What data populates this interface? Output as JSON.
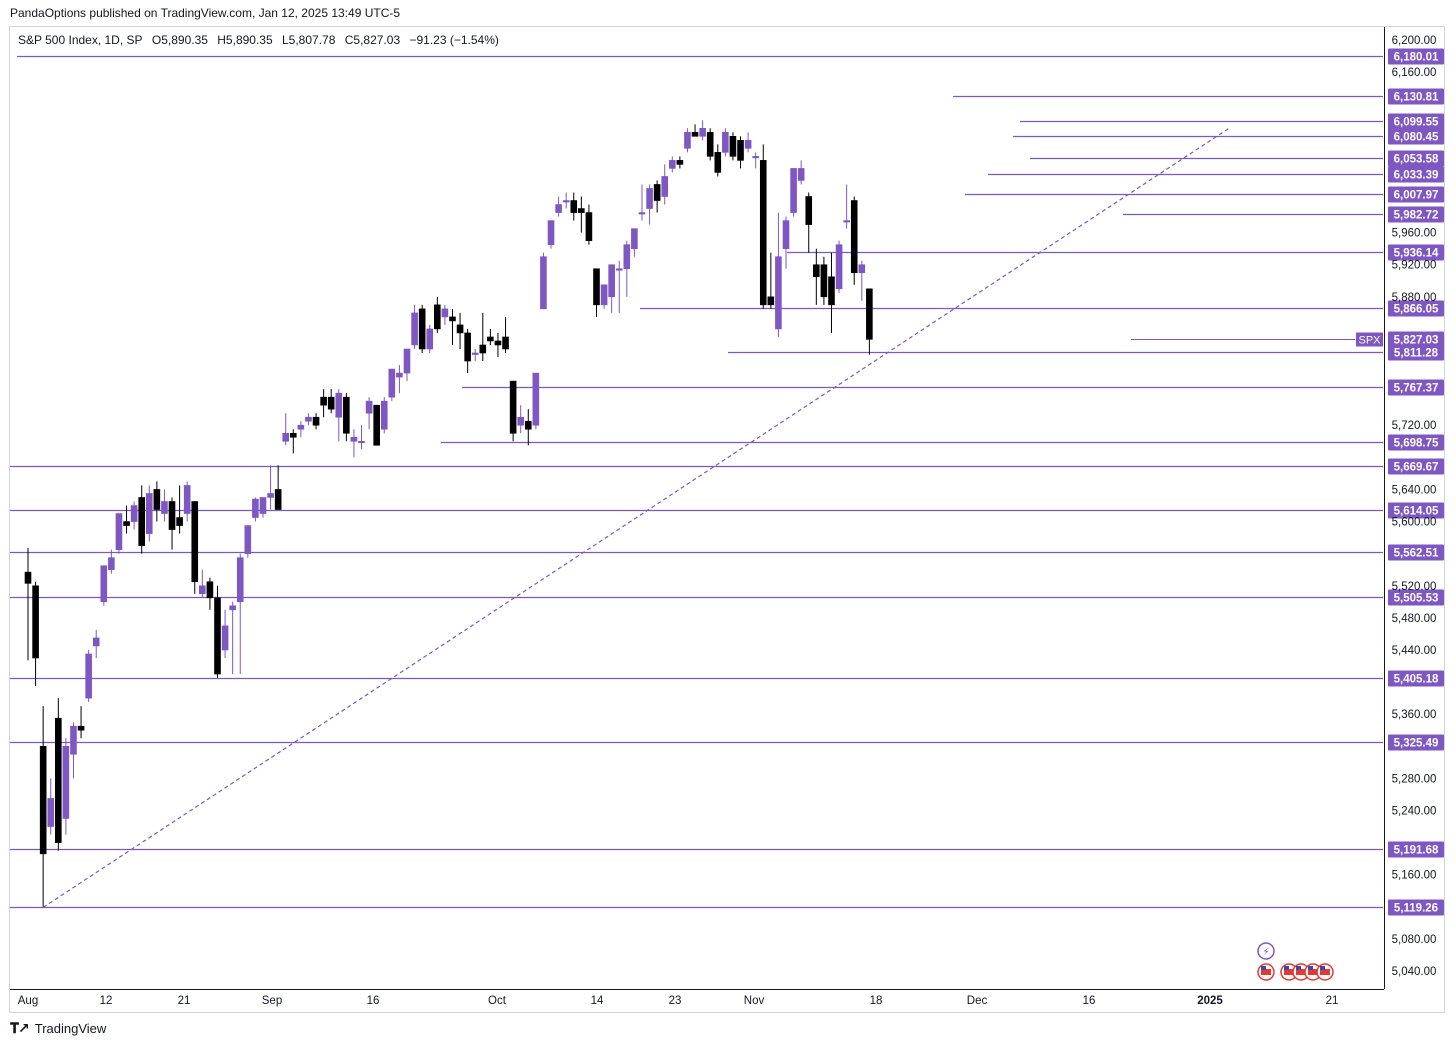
{
  "header": {
    "published": "PandaOptions published on TradingView.com, Jan 12, 2025 13:49 UTC-5"
  },
  "legend": {
    "symbol": "S&P 500 Index, 1D, SP",
    "open": "O5,890.35",
    "high": "H5,890.35",
    "low": "L5,807.78",
    "close": "C5,827.03",
    "change": "−91.23 (−1.54%)"
  },
  "footer": {
    "brand": "TradingView"
  },
  "colors": {
    "bull": "#7e57c2",
    "bear": "#000000",
    "level": "#7e57c2",
    "label_bg": "#7e57c2",
    "axis_text": "#131722"
  },
  "chart_data": {
    "type": "candlestick",
    "symbol": "SPX",
    "ylim": [
      5010,
      6215
    ],
    "y_ticks": [
      6200,
      6160,
      5960,
      5920,
      5880,
      5720,
      5640,
      5600,
      5520,
      5480,
      5440,
      5360,
      5280,
      5240,
      5160,
      5080,
      5040
    ],
    "x_ticks": [
      "Aug",
      "12",
      "21",
      "Sep",
      "16",
      "Oct",
      "14",
      "23",
      "Nov",
      "18",
      "Dec",
      "16",
      "2025",
      "21"
    ],
    "last_price": 5827.03,
    "last_label": "SPX",
    "levels": [
      6180.01,
      6130.81,
      6099.55,
      6080.45,
      6053.58,
      6033.39,
      6007.97,
      5982.72,
      5936.14,
      5866.05,
      5827.03,
      5811.28,
      5767.37,
      5698.75,
      5669.67,
      5614.05,
      5562.51,
      5505.53,
      5405.18,
      5325.49,
      5191.68,
      5119.26
    ],
    "level_labels": [
      "6,180.01",
      "6,130.81",
      "6,099.55",
      "6,080.45",
      "6,053.58",
      "6,033.39",
      "6,007.97",
      "5,982.72",
      "5,936.14",
      "5,866.05",
      "5,827.03",
      "5,811.28",
      "5,767.37",
      "5,698.75",
      "5,669.67",
      "5,614.05",
      "5,562.51",
      "5,505.53",
      "5,405.18",
      "5,325.49",
      "5,191.68",
      "5,119.26"
    ],
    "trendline": {
      "from": [
        "2024-08-05",
        5119.26
      ],
      "to": [
        "2025-01-02",
        6090
      ]
    },
    "candles": [
      [
        "2024-08-01",
        5537,
        5567,
        5427,
        5523
      ],
      [
        "2024-08-02",
        5520,
        5525,
        5395,
        5430
      ],
      [
        "2024-08-05",
        5320,
        5370,
        5120,
        5186
      ],
      [
        "2024-08-06",
        5220,
        5280,
        5210,
        5255
      ],
      [
        "2024-08-07",
        5355,
        5380,
        5190,
        5200
      ],
      [
        "2024-08-08",
        5230,
        5330,
        5210,
        5320
      ],
      [
        "2024-08-09",
        5310,
        5350,
        5280,
        5345
      ],
      [
        "2024-08-12",
        5345,
        5370,
        5330,
        5340
      ],
      [
        "2024-08-13",
        5380,
        5440,
        5375,
        5435
      ],
      [
        "2024-08-14",
        5445,
        5465,
        5430,
        5455
      ],
      [
        "2024-08-15",
        5500,
        5545,
        5495,
        5545
      ],
      [
        "2024-08-16",
        5540,
        5565,
        5535,
        5555
      ],
      [
        "2024-08-19",
        5565,
        5610,
        5560,
        5610
      ],
      [
        "2024-08-20",
        5600,
        5620,
        5585,
        5595
      ],
      [
        "2024-08-21",
        5600,
        5625,
        5590,
        5620
      ],
      [
        "2024-08-22",
        5630,
        5645,
        5560,
        5570
      ],
      [
        "2024-08-23",
        5585,
        5645,
        5575,
        5635
      ],
      [
        "2024-08-26",
        5640,
        5650,
        5600,
        5615
      ],
      [
        "2024-08-27",
        5610,
        5640,
        5600,
        5625
      ],
      [
        "2024-08-28",
        5625,
        5630,
        5565,
        5590
      ],
      [
        "2024-08-29",
        5605,
        5645,
        5585,
        5595
      ],
      [
        "2024-08-30",
        5610,
        5650,
        5600,
        5645
      ],
      [
        "2024-09-03",
        5625,
        5625,
        5510,
        5525
      ],
      [
        "2024-09-04",
        5510,
        5540,
        5505,
        5520
      ],
      [
        "2024-09-05",
        5525,
        5530,
        5490,
        5505
      ],
      [
        "2024-09-06",
        5505,
        5520,
        5405,
        5410
      ],
      [
        "2024-09-09",
        5440,
        5490,
        5430,
        5470
      ],
      [
        "2024-09-10",
        5490,
        5500,
        5410,
        5495
      ],
      [
        "2024-09-11",
        5500,
        5560,
        5410,
        5555
      ],
      [
        "2024-09-12",
        5560,
        5595,
        5555,
        5595
      ],
      [
        "2024-09-13",
        5605,
        5630,
        5600,
        5628
      ],
      [
        "2024-09-16",
        5610,
        5630,
        5605,
        5630
      ],
      [
        "2024-09-17",
        5630,
        5670,
        5615,
        5635
      ],
      [
        "2024-09-18",
        5640,
        5670,
        5615,
        5615
      ],
      [
        "2024-09-19",
        5700,
        5735,
        5695,
        5710
      ],
      [
        "2024-09-20",
        5710,
        5715,
        5685,
        5705
      ],
      [
        "2024-09-23",
        5715,
        5725,
        5705,
        5720
      ],
      [
        "2024-09-24",
        5725,
        5735,
        5720,
        5730
      ],
      [
        "2024-09-25",
        5730,
        5735,
        5715,
        5720
      ],
      [
        "2024-09-26",
        5755,
        5765,
        5730,
        5745
      ],
      [
        "2024-09-27",
        5755,
        5765,
        5735,
        5740
      ],
      [
        "2024-09-30",
        5730,
        5765,
        5700,
        5760
      ],
      [
        "2024-10-01",
        5755,
        5760,
        5700,
        5710
      ],
      [
        "2024-10-02",
        5700,
        5715,
        5680,
        5705
      ],
      [
        "2024-10-03",
        5700,
        5720,
        5690,
        5700
      ],
      [
        "2024-10-04",
        5735,
        5755,
        5715,
        5750
      ],
      [
        "2024-10-07",
        5745,
        5745,
        5695,
        5695
      ],
      [
        "2024-10-08",
        5715,
        5755,
        5710,
        5750
      ],
      [
        "2024-10-09",
        5755,
        5790,
        5750,
        5790
      ],
      [
        "2024-10-10",
        5780,
        5795,
        5760,
        5785
      ],
      [
        "2024-10-11",
        5785,
        5815,
        5775,
        5815
      ],
      [
        "2024-10-14",
        5820,
        5870,
        5815,
        5860
      ],
      [
        "2024-10-15",
        5865,
        5870,
        5810,
        5815
      ],
      [
        "2024-10-16",
        5815,
        5845,
        5810,
        5840
      ],
      [
        "2024-10-17",
        5870,
        5880,
        5835,
        5840
      ],
      [
        "2024-10-18",
        5855,
        5870,
        5845,
        5865
      ],
      [
        "2024-10-21",
        5855,
        5865,
        5820,
        5850
      ],
      [
        "2024-10-22",
        5845,
        5860,
        5815,
        5835
      ],
      [
        "2024-10-23",
        5835,
        5840,
        5785,
        5800
      ],
      [
        "2024-10-24",
        5810,
        5815,
        5800,
        5810
      ],
      [
        "2024-10-25",
        5820,
        5860,
        5800,
        5810
      ],
      [
        "2024-10-28",
        5830,
        5840,
        5820,
        5825
      ],
      [
        "2024-10-29",
        5825,
        5835,
        5805,
        5820
      ],
      [
        "2024-10-30",
        5830,
        5855,
        5810,
        5815
      ],
      [
        "2024-10-31",
        5775,
        5775,
        5700,
        5710
      ],
      [
        "2024-11-01",
        5720,
        5745,
        5710,
        5730
      ],
      [
        "2024-11-04",
        5725,
        5740,
        5695,
        5715
      ],
      [
        "2024-11-05",
        5720,
        5785,
        5715,
        5785
      ],
      [
        "2024-11-06",
        5865,
        5935,
        5865,
        5930
      ],
      [
        "2024-11-07",
        5945,
        5975,
        5940,
        5975
      ],
      [
        "2024-11-08",
        5985,
        6005,
        5980,
        5995
      ],
      [
        "2024-11-11",
        6000,
        6010,
        5990,
        6000
      ],
      [
        "2024-11-12",
        6000,
        6010,
        5975,
        5985
      ],
      [
        "2024-11-13",
        5990,
        6005,
        5960,
        5985
      ],
      [
        "2024-11-14",
        5985,
        5995,
        5945,
        5950
      ],
      [
        "2024-11-15",
        5915,
        5915,
        5855,
        5870
      ],
      [
        "2024-11-18",
        5870,
        5895,
        5865,
        5895
      ],
      [
        "2024-11-19",
        5880,
        5920,
        5860,
        5920
      ],
      [
        "2024-11-20",
        5915,
        5925,
        5860,
        5915
      ],
      [
        "2024-11-21",
        5915,
        5950,
        5880,
        5945
      ],
      [
        "2024-11-22",
        5940,
        5965,
        5930,
        5965
      ],
      [
        "2024-11-25",
        5985,
        6020,
        5975,
        5985
      ],
      [
        "2024-11-26",
        5990,
        6020,
        5970,
        6015
      ],
      [
        "2024-11-27",
        6020,
        6025,
        5985,
        6000
      ],
      [
        "2024-11-29",
        6005,
        6045,
        5995,
        6030
      ],
      [
        "2024-12-02",
        6040,
        6055,
        6035,
        6050
      ],
      [
        "2024-12-03",
        6050,
        6055,
        6040,
        6045
      ],
      [
        "2024-12-04",
        6065,
        6090,
        6060,
        6085
      ],
      [
        "2024-12-05",
        6085,
        6095,
        6080,
        6080
      ],
      [
        "2024-12-06",
        6080,
        6100,
        6075,
        6090
      ],
      [
        "2024-12-09",
        6085,
        6090,
        6050,
        6055
      ],
      [
        "2024-12-10",
        6060,
        6070,
        6030,
        6035
      ],
      [
        "2024-12-11",
        6060,
        6090,
        6055,
        6085
      ],
      [
        "2024-12-12",
        6080,
        6085,
        6050,
        6055
      ],
      [
        "2024-12-13",
        6075,
        6080,
        6040,
        6050
      ],
      [
        "2024-12-16",
        6065,
        6085,
        6060,
        6075
      ],
      [
        "2024-12-17",
        6055,
        6060,
        6040,
        6055
      ],
      [
        "2024-12-18",
        6050,
        6070,
        5865,
        5870
      ],
      [
        "2024-12-19",
        5880,
        5935,
        5865,
        5870
      ],
      [
        "2024-12-20",
        5840,
        5985,
        5830,
        5930
      ],
      [
        "2024-12-23",
        5940,
        5980,
        5915,
        5975
      ],
      [
        "2024-12-24",
        5985,
        6040,
        5980,
        6040
      ],
      [
        "2024-12-26",
        6025,
        6050,
        6020,
        6040
      ],
      [
        "2024-12-27",
        6005,
        6010,
        5935,
        5970
      ],
      [
        "2024-12-30",
        5920,
        5940,
        5870,
        5905
      ],
      [
        "2024-12-31",
        5920,
        5930,
        5870,
        5880
      ],
      [
        "2025-01-02",
        5905,
        5935,
        5835,
        5870
      ],
      [
        "2025-01-03",
        5890,
        5950,
        5885,
        5945
      ],
      [
        "2025-01-06",
        5975,
        6020,
        5965,
        5975
      ],
      [
        "2025-01-07",
        6000,
        6005,
        5895,
        5910
      ],
      [
        "2025-01-08",
        5910,
        5925,
        5875,
        5920
      ],
      [
        "2025-01-10",
        5890,
        5890,
        5808,
        5827
      ]
    ]
  }
}
